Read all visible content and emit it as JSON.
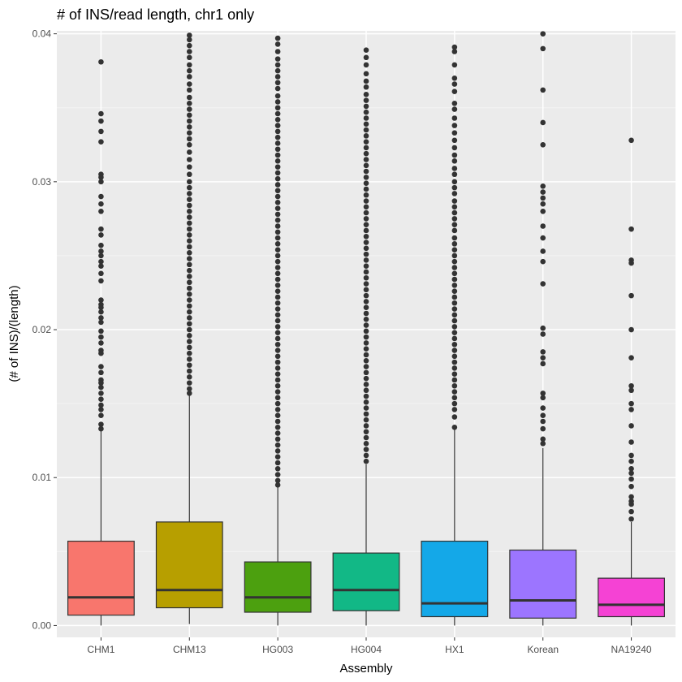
{
  "chart_data": {
    "type": "boxplot",
    "title": "# of INS/read length, chr1 only",
    "xlabel": "Assembly",
    "ylabel": "(# of INS)/(length)",
    "ylim": [
      -0.0008,
      0.0402
    ],
    "yticks": [
      0.0,
      0.01,
      0.02,
      0.03,
      0.04
    ],
    "ytick_labels": [
      "0.00",
      "0.01",
      "0.02",
      "0.03",
      "0.04"
    ],
    "grid": true,
    "legend": "none",
    "categories": [
      "CHM1",
      "CHM13",
      "HG003",
      "HG004",
      "HX1",
      "Korean",
      "NA19240"
    ],
    "boxes": [
      {
        "name": "CHM1",
        "color": "#F8766D",
        "q1": 0.0007,
        "median": 0.0019,
        "q3": 0.0057,
        "whisker_low": 0.0,
        "whisker_high": 0.0132,
        "outliers": [
          0.0381,
          0.0346,
          0.0341,
          0.0334,
          0.0327,
          0.0305,
          0.0303,
          0.03,
          0.029,
          0.0285,
          0.028,
          0.0268,
          0.0264,
          0.0257,
          0.0253,
          0.025,
          0.0246,
          0.0243,
          0.0238,
          0.0233,
          0.022,
          0.0217,
          0.0215,
          0.0212,
          0.0208,
          0.0205,
          0.0199,
          0.0195,
          0.0191,
          0.0186,
          0.0184,
          0.0175,
          0.0171,
          0.0166,
          0.0164,
          0.0161,
          0.0157,
          0.0153,
          0.0149,
          0.0146,
          0.0142,
          0.0136,
          0.0133
        ]
      },
      {
        "name": "CHM13",
        "color": "#B79F00",
        "q1": 0.0012,
        "median": 0.0024,
        "q3": 0.007,
        "whisker_low": 0.0001,
        "whisker_high": 0.0156,
        "outliers": [
          0.0399,
          0.0396,
          0.0392,
          0.0388,
          0.0384,
          0.0379,
          0.0375,
          0.0371,
          0.0366,
          0.0362,
          0.0357,
          0.0353,
          0.0349,
          0.0345,
          0.0341,
          0.0337,
          0.0333,
          0.0329,
          0.0325,
          0.032,
          0.0315,
          0.031,
          0.0305,
          0.03,
          0.0296,
          0.0292,
          0.0288,
          0.0284,
          0.028,
          0.0276,
          0.0272,
          0.0268,
          0.0264,
          0.026,
          0.0256,
          0.0252,
          0.0248,
          0.0244,
          0.024,
          0.0236,
          0.0232,
          0.0228,
          0.0224,
          0.022,
          0.0216,
          0.0212,
          0.0208,
          0.0204,
          0.02,
          0.0196,
          0.0192,
          0.0188,
          0.0184,
          0.018,
          0.0176,
          0.0172,
          0.0168,
          0.0164,
          0.016,
          0.0157
        ]
      },
      {
        "name": "HG003",
        "color": "#4CA00F",
        "q1": 0.0009,
        "median": 0.0019,
        "q3": 0.0043,
        "whisker_low": 0.0,
        "whisker_high": 0.0094,
        "outliers": [
          0.0397,
          0.0393,
          0.0388,
          0.0383,
          0.0379,
          0.0375,
          0.0371,
          0.0367,
          0.0363,
          0.0358,
          0.0354,
          0.035,
          0.0346,
          0.0342,
          0.0338,
          0.0334,
          0.033,
          0.0326,
          0.0322,
          0.0318,
          0.0314,
          0.031,
          0.0306,
          0.0302,
          0.0298,
          0.0294,
          0.029,
          0.0286,
          0.0282,
          0.0278,
          0.0274,
          0.027,
          0.0266,
          0.0262,
          0.0258,
          0.0254,
          0.025,
          0.0246,
          0.0242,
          0.0238,
          0.0234,
          0.023,
          0.0226,
          0.0222,
          0.0218,
          0.0214,
          0.021,
          0.0206,
          0.0202,
          0.0198,
          0.0194,
          0.019,
          0.0186,
          0.0182,
          0.0178,
          0.0174,
          0.017,
          0.0166,
          0.0162,
          0.0158,
          0.0154,
          0.015,
          0.0146,
          0.0142,
          0.0138,
          0.0134,
          0.013,
          0.0126,
          0.0122,
          0.0118,
          0.0114,
          0.011,
          0.0106,
          0.0102,
          0.0098,
          0.0095
        ]
      },
      {
        "name": "HG004",
        "color": "#12B886",
        "q1": 0.001,
        "median": 0.0024,
        "q3": 0.0049,
        "whisker_low": 0.0,
        "whisker_high": 0.0109,
        "outliers": [
          0.0389,
          0.0384,
          0.0379,
          0.0373,
          0.0368,
          0.0364,
          0.0359,
          0.0355,
          0.0351,
          0.0347,
          0.0343,
          0.0339,
          0.0335,
          0.0331,
          0.0327,
          0.0323,
          0.0319,
          0.0315,
          0.0311,
          0.0307,
          0.0303,
          0.0299,
          0.0295,
          0.0291,
          0.0287,
          0.0283,
          0.0279,
          0.0275,
          0.0271,
          0.0267,
          0.0263,
          0.0259,
          0.0255,
          0.0251,
          0.0247,
          0.0243,
          0.0239,
          0.0235,
          0.0231,
          0.0227,
          0.0223,
          0.0219,
          0.0215,
          0.0211,
          0.0207,
          0.0203,
          0.0199,
          0.0195,
          0.0191,
          0.0187,
          0.0183,
          0.0179,
          0.0175,
          0.0171,
          0.0167,
          0.0163,
          0.0159,
          0.0155,
          0.0151,
          0.0147,
          0.0143,
          0.0139,
          0.0135,
          0.0131,
          0.0127,
          0.0123,
          0.0119,
          0.0115,
          0.0111
        ]
      },
      {
        "name": "HX1",
        "color": "#14A8E8",
        "q1": 0.0006,
        "median": 0.0015,
        "q3": 0.0057,
        "whisker_low": 0.0,
        "whisker_high": 0.0133,
        "outliers": [
          0.0391,
          0.0388,
          0.0379,
          0.037,
          0.0366,
          0.0361,
          0.0353,
          0.0349,
          0.0343,
          0.0338,
          0.0333,
          0.0328,
          0.0323,
          0.0318,
          0.0314,
          0.0309,
          0.0305,
          0.03,
          0.0296,
          0.0292,
          0.0287,
          0.0283,
          0.0279,
          0.0275,
          0.0271,
          0.0267,
          0.0262,
          0.0258,
          0.0254,
          0.025,
          0.0246,
          0.0242,
          0.0238,
          0.0234,
          0.023,
          0.0226,
          0.0222,
          0.0218,
          0.0214,
          0.021,
          0.0206,
          0.0202,
          0.0198,
          0.0194,
          0.019,
          0.0186,
          0.0182,
          0.0178,
          0.0174,
          0.017,
          0.0166,
          0.0162,
          0.0158,
          0.0154,
          0.015,
          0.0146,
          0.0141,
          0.0134
        ]
      },
      {
        "name": "Korean",
        "color": "#9C75FF",
        "q1": 0.0005,
        "median": 0.0017,
        "q3": 0.0051,
        "whisker_low": 0.0,
        "whisker_high": 0.012,
        "outliers": [
          0.04,
          0.039,
          0.0362,
          0.034,
          0.0325,
          0.0297,
          0.0293,
          0.0289,
          0.0285,
          0.028,
          0.027,
          0.0262,
          0.0253,
          0.0246,
          0.0231,
          0.0201,
          0.0197,
          0.0185,
          0.0181,
          0.0177,
          0.0157,
          0.0154,
          0.0147,
          0.0142,
          0.0138,
          0.0133,
          0.0126,
          0.0123
        ]
      },
      {
        "name": "NA19240",
        "color": "#F542D4",
        "q1": 0.0006,
        "median": 0.0014,
        "q3": 0.0032,
        "whisker_low": 0.0,
        "whisker_high": 0.007,
        "outliers": [
          0.0328,
          0.0268,
          0.0247,
          0.0245,
          0.0223,
          0.02,
          0.0181,
          0.0162,
          0.0159,
          0.015,
          0.0146,
          0.0135,
          0.0124,
          0.0115,
          0.0111,
          0.0106,
          0.0103,
          0.0099,
          0.0094,
          0.0087,
          0.0084,
          0.0082,
          0.0077,
          0.0072
        ]
      }
    ]
  }
}
